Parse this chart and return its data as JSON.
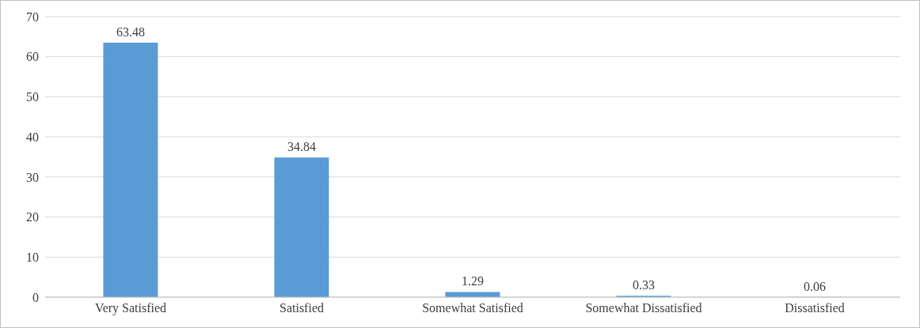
{
  "chart_data": {
    "type": "bar",
    "categories": [
      "Very Satisfied",
      "Satisfied",
      "Somewhat Satisfied",
      "Somewhat Dissatisfied",
      "Dissatisfied"
    ],
    "values": [
      63.48,
      34.84,
      1.29,
      0.33,
      0.06
    ],
    "color": "#5b9bd5",
    "ylim": [
      0,
      70
    ],
    "yticks": [
      0,
      10,
      20,
      30,
      40,
      50,
      60,
      70
    ],
    "grid": "y",
    "data_labels": true,
    "legend": false
  }
}
